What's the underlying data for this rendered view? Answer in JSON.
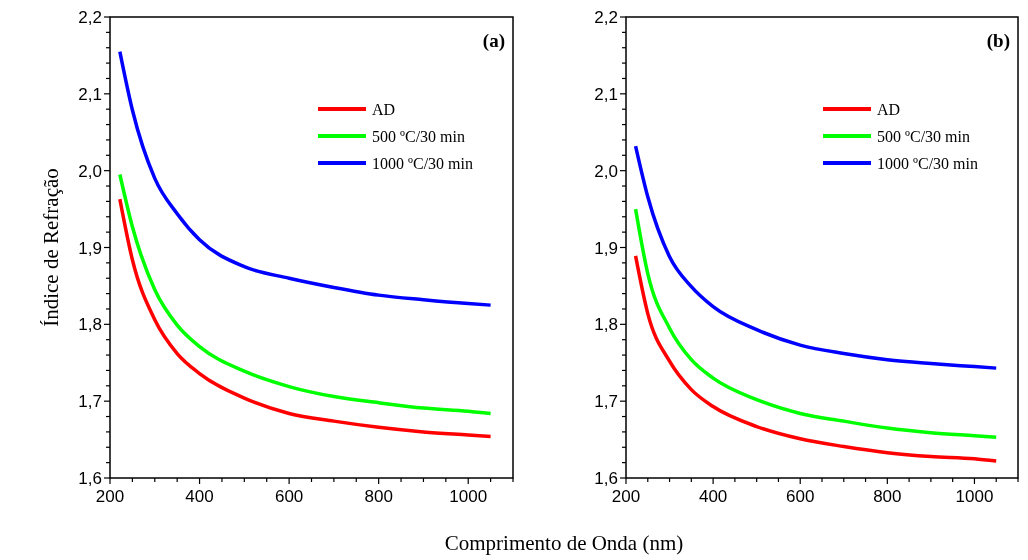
{
  "chart_data": [
    {
      "type": "line",
      "xlabel": "Comprimento de Onda (nm)",
      "ylabel": "Índice de Refração",
      "annotations": [
        "(a)"
      ],
      "legend": "top right",
      "line_style": "solid",
      "xlim": [
        200,
        1100
      ],
      "ylim": [
        1.6,
        2.2
      ],
      "xticks": [
        200,
        {
          "value": 250,
          "label": null
        },
        400,
        {
          "value": 300,
          "label": null
        },
        {
          "value": 350,
          "label": null
        },
        {
          "value": 450,
          "label": null
        },
        {
          "value": 500,
          "label": null
        },
        {
          "value": 550,
          "label": null
        },
        600,
        {
          "value": 650,
          "label": null
        },
        {
          "value": 700,
          "label": null
        },
        {
          "value": 750,
          "label": null
        },
        800,
        {
          "value": 850,
          "label": null
        },
        {
          "value": 900,
          "label": null
        },
        {
          "value": 950,
          "label": null
        },
        1000,
        {
          "value": 1050,
          "label": null
        },
        {
          "value": 1100,
          "label": null
        }
      ],
      "yticks": [
        {
          "value": 1.6,
          "label": "1,6"
        },
        {
          "value": 1.62,
          "label": null
        },
        {
          "value": 1.64,
          "label": null
        },
        {
          "value": 1.66,
          "label": null
        },
        {
          "value": 1.68,
          "label": null
        },
        {
          "value": 1.7,
          "label": "1,7"
        },
        {
          "value": 1.72,
          "label": null
        },
        {
          "value": 1.74,
          "label": null
        },
        {
          "value": 1.76,
          "label": null
        },
        {
          "value": 1.78,
          "label": null
        },
        {
          "value": 1.8,
          "label": "1,8"
        },
        {
          "value": 1.82,
          "label": null
        },
        {
          "value": 1.84,
          "label": null
        },
        {
          "value": 1.86,
          "label": null
        },
        {
          "value": 1.88,
          "label": null
        },
        {
          "value": 1.9,
          "label": "1,9"
        },
        {
          "value": 1.92,
          "label": null
        },
        {
          "value": 1.94,
          "label": null
        },
        {
          "value": 1.96,
          "label": null
        },
        {
          "value": 1.98,
          "label": null
        },
        {
          "value": 2.0,
          "label": "2,0"
        },
        {
          "value": 2.02,
          "label": null
        },
        {
          "value": 2.04,
          "label": null
        },
        {
          "value": 2.06,
          "label": null
        },
        {
          "value": 2.08,
          "label": null
        },
        {
          "value": 2.1,
          "label": "2,1"
        },
        {
          "value": 2.12,
          "label": null
        },
        {
          "value": 2.14,
          "label": null
        },
        {
          "value": 2.16,
          "label": null
        },
        {
          "value": 2.18,
          "label": null
        },
        {
          "value": 2.2,
          "label": "2,2"
        }
      ],
      "x": [
        222,
        250,
        300,
        350,
        400,
        500,
        600,
        700,
        800,
        900,
        1000,
        1050
      ],
      "series": [
        {
          "name": "AD",
          "color": "#ff0000",
          "values": [
            1.963,
            1.884,
            1.806,
            1.762,
            1.736,
            1.704,
            1.684,
            1.674,
            1.666,
            1.66,
            1.656,
            1.654
          ]
        },
        {
          "name": "500 ºC/30 min",
          "color": "#00ff00",
          "values": [
            1.995,
            1.927,
            1.845,
            1.799,
            1.771,
            1.739,
            1.719,
            1.706,
            1.698,
            1.691,
            1.687,
            1.684
          ]
        },
        {
          "name": "1000 ºC/30 min",
          "color": "#0000ff",
          "values": [
            2.155,
            2.079,
            1.99,
            1.944,
            1.91,
            1.875,
            1.86,
            1.848,
            1.838,
            1.832,
            1.827,
            1.825
          ]
        }
      ]
    },
    {
      "type": "line",
      "annotations": [
        "(b)"
      ],
      "legend": "top right",
      "line_style": "solid",
      "xlim": [
        200,
        1100
      ],
      "ylim": [
        1.6,
        2.2
      ],
      "xticks": [
        200,
        {
          "value": 250,
          "label": null
        },
        400,
        {
          "value": 300,
          "label": null
        },
        {
          "value": 350,
          "label": null
        },
        {
          "value": 450,
          "label": null
        },
        {
          "value": 500,
          "label": null
        },
        {
          "value": 550,
          "label": null
        },
        600,
        {
          "value": 650,
          "label": null
        },
        {
          "value": 700,
          "label": null
        },
        {
          "value": 750,
          "label": null
        },
        800,
        {
          "value": 850,
          "label": null
        },
        {
          "value": 900,
          "label": null
        },
        {
          "value": 950,
          "label": null
        },
        1000,
        {
          "value": 1050,
          "label": null
        },
        {
          "value": 1100,
          "label": null
        }
      ],
      "yticks": [
        {
          "value": 1.6,
          "label": "1,6"
        },
        {
          "value": 1.62,
          "label": null
        },
        {
          "value": 1.64,
          "label": null
        },
        {
          "value": 1.66,
          "label": null
        },
        {
          "value": 1.68,
          "label": null
        },
        {
          "value": 1.7,
          "label": "1,7"
        },
        {
          "value": 1.72,
          "label": null
        },
        {
          "value": 1.74,
          "label": null
        },
        {
          "value": 1.76,
          "label": null
        },
        {
          "value": 1.78,
          "label": null
        },
        {
          "value": 1.8,
          "label": "1,8"
        },
        {
          "value": 1.82,
          "label": null
        },
        {
          "value": 1.84,
          "label": null
        },
        {
          "value": 1.86,
          "label": null
        },
        {
          "value": 1.88,
          "label": null
        },
        {
          "value": 1.9,
          "label": "1,9"
        },
        {
          "value": 1.92,
          "label": null
        },
        {
          "value": 1.94,
          "label": null
        },
        {
          "value": 1.96,
          "label": null
        },
        {
          "value": 1.98,
          "label": null
        },
        {
          "value": 2.0,
          "label": "2,0"
        },
        {
          "value": 2.02,
          "label": null
        },
        {
          "value": 2.04,
          "label": null
        },
        {
          "value": 2.06,
          "label": null
        },
        {
          "value": 2.08,
          "label": null
        },
        {
          "value": 2.1,
          "label": "2,1"
        },
        {
          "value": 2.12,
          "label": null
        },
        {
          "value": 2.14,
          "label": null
        },
        {
          "value": 2.16,
          "label": null
        },
        {
          "value": 2.18,
          "label": null
        },
        {
          "value": 2.2,
          "label": "2,2"
        }
      ],
      "x": [
        222,
        250,
        300,
        350,
        400,
        500,
        600,
        700,
        800,
        900,
        1000,
        1050
      ],
      "series": [
        {
          "name": "AD",
          "color": "#ff0000",
          "values": [
            1.889,
            1.814,
            1.752,
            1.715,
            1.693,
            1.667,
            1.651,
            1.641,
            1.633,
            1.628,
            1.625,
            1.622
          ]
        },
        {
          "name": "500 ºC/30 min",
          "color": "#00ff00",
          "values": [
            1.95,
            1.866,
            1.795,
            1.754,
            1.73,
            1.702,
            1.684,
            1.674,
            1.665,
            1.659,
            1.655,
            1.653
          ]
        },
        {
          "name": "1000 ºC/30 min",
          "color": "#0000ff",
          "values": [
            2.032,
            1.966,
            1.888,
            1.849,
            1.823,
            1.793,
            1.773,
            1.762,
            1.754,
            1.749,
            1.745,
            1.743
          ]
        }
      ]
    }
  ]
}
